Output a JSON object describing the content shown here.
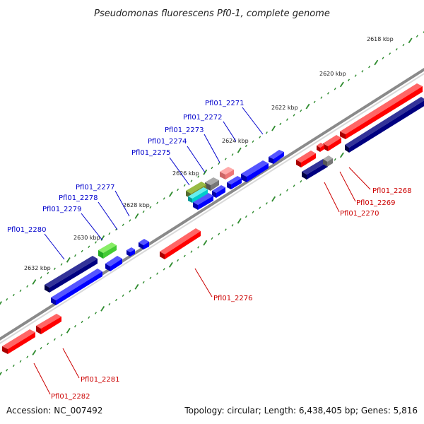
{
  "title": "Pseudomonas fluorescens Pf0-1, complete genome",
  "footer": {
    "accession": "Accession: NC_007492",
    "summary": "Topology: circular; Length: 6,438,405 bp; Genes: 5,816"
  },
  "colors": {
    "backbone": "#8a8a8a",
    "tick": "#2e8b2e",
    "label_top": "#0000cc",
    "label_bottom": "#cc0000"
  },
  "kbp_markers": [
    "2618 kbp",
    "2620 kbp",
    "2622 kbp",
    "2624 kbp",
    "2626 kbp",
    "2628 kbp",
    "2630 kbp",
    "2632 kbp"
  ],
  "genes_top": [
    {
      "id": "Pfl01_2271",
      "color": "#0000ff"
    },
    {
      "id": "Pfl01_2272",
      "color": "#0000ff"
    },
    {
      "id": "Pfl01_2273",
      "color": "#0000ff"
    },
    {
      "id": "Pfl01_2274",
      "color": "#0000ff"
    },
    {
      "id": "Pfl01_2275",
      "color": "#0000ff"
    },
    {
      "id": "Pfl01_2277",
      "color": "#0000ff"
    },
    {
      "id": "Pfl01_2278",
      "color": "#0000ff"
    },
    {
      "id": "Pfl01_2279",
      "color": "#0000ff"
    },
    {
      "id": "Pfl01_2280",
      "color": "#0000ff"
    }
  ],
  "genes_bottom": [
    {
      "id": "Pfl01_2268",
      "color": "#ff0000"
    },
    {
      "id": "Pfl01_2269",
      "color": "#ff0000"
    },
    {
      "id": "Pfl01_2270",
      "color": "#ff0000"
    },
    {
      "id": "Pfl01_2276",
      "color": "#ff0000"
    },
    {
      "id": "Pfl01_2281",
      "color": "#ff0000"
    },
    {
      "id": "Pfl01_2282",
      "color": "#ff0000"
    }
  ]
}
